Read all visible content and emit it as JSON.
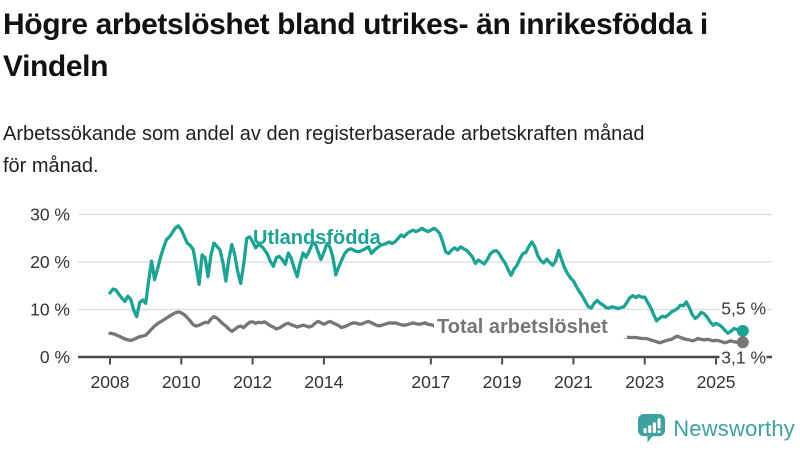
{
  "title_lines": [
    "Högre arbetslöshet bland utrikes- än inrikesfödda i",
    "Vindeln"
  ],
  "subtitle_lines": [
    "Arbetssökande som andel av den registerbaserade arbetskraften månad",
    "för månad."
  ],
  "chart_data": {
    "type": "line",
    "unit": "percent",
    "x_start_year": 2008,
    "points_per_year": 12,
    "ylim": [
      0,
      32
    ],
    "grid": true,
    "legend_position": "inline-labels",
    "y_ticks": [
      {
        "value": 0,
        "label": "0 %"
      },
      {
        "value": 10,
        "label": "10 %"
      },
      {
        "value": 20,
        "label": "20 %"
      },
      {
        "value": 30,
        "label": "30 %"
      }
    ],
    "x_ticks": [
      {
        "year": 2008,
        "label": "2008"
      },
      {
        "year": 2010,
        "label": "2010"
      },
      {
        "year": 2012,
        "label": "2012"
      },
      {
        "year": 2014,
        "label": "2014"
      },
      {
        "year": 2017,
        "label": "2017"
      },
      {
        "year": 2019,
        "label": "2019"
      },
      {
        "year": 2021,
        "label": "2021"
      },
      {
        "year": 2023,
        "label": "2023"
      },
      {
        "year": 2025,
        "label": "2025"
      }
    ],
    "series": [
      {
        "name": "Utlandsfödda",
        "color": "#1da294",
        "end_label": "5,5 %",
        "end_value": 5.5,
        "values": [
          13.5,
          14.3,
          14.1,
          13.2,
          12.4,
          11.7,
          12.8,
          12.1,
          9.8,
          8.5,
          11.5,
          12.0,
          11.3,
          16.0,
          20.2,
          16.3,
          18.5,
          21.0,
          23.0,
          24.7,
          25.3,
          26.2,
          27.2,
          27.6,
          26.8,
          25.4,
          24.0,
          23.5,
          22.6,
          19.1,
          15.3,
          21.5,
          20.9,
          16.9,
          21.5,
          24.0,
          23.3,
          22.6,
          19.9,
          16.0,
          20.5,
          23.7,
          21.5,
          18.0,
          15.5,
          19.5,
          25.0,
          25.3,
          24.3,
          23.0,
          23.7,
          23.3,
          22.6,
          21.6,
          20.1,
          19.1,
          20.9,
          21.2,
          20.5,
          19.5,
          21.9,
          20.8,
          18.7,
          16.9,
          19.7,
          21.9,
          21.0,
          22.2,
          23.7,
          24.0,
          22.2,
          20.5,
          22.0,
          23.9,
          23.2,
          21.1,
          17.3,
          19.0,
          20.4,
          21.8,
          22.5,
          22.8,
          22.5,
          22.2,
          22.2,
          22.5,
          22.8,
          23.2,
          21.8,
          22.5,
          23.0,
          23.5,
          23.7,
          23.9,
          24.2,
          23.9,
          24.3,
          25.0,
          25.7,
          25.3,
          26.0,
          26.4,
          26.7,
          26.4,
          26.7,
          27.1,
          26.7,
          26.4,
          26.7,
          27.1,
          26.7,
          26.0,
          24.2,
          22.1,
          21.8,
          22.5,
          23.0,
          22.5,
          23.2,
          22.8,
          22.5,
          21.8,
          21.1,
          19.7,
          20.4,
          20.0,
          19.6,
          20.5,
          21.7,
          22.2,
          22.4,
          21.8,
          20.7,
          19.8,
          18.4,
          17.2,
          18.5,
          19.3,
          20.7,
          21.8,
          22.0,
          23.3,
          24.2,
          23.2,
          21.3,
          20.3,
          19.8,
          20.6,
          19.9,
          19.3,
          20.2,
          22.4,
          20.5,
          18.8,
          17.6,
          16.6,
          16.0,
          14.8,
          13.8,
          12.8,
          11.7,
          10.6,
          10.3,
          11.3,
          11.9,
          11.3,
          10.9,
          10.4,
          10.3,
          10.6,
          10.4,
          10.2,
          10.4,
          10.6,
          11.5,
          12.5,
          12.9,
          12.5,
          12.9,
          12.6,
          12.6,
          11.5,
          10.4,
          8.9,
          7.6,
          8.2,
          8.6,
          8.4,
          8.9,
          9.5,
          9.8,
          10.2,
          10.9,
          10.8,
          11.6,
          10.4,
          8.9,
          8.1,
          8.6,
          9.4,
          9.1,
          8.4,
          7.4,
          6.7,
          7.1,
          6.8,
          6.3,
          5.6,
          5.0,
          5.4,
          6.0,
          5.8,
          5.4,
          5.5
        ]
      },
      {
        "name": "Total arbetslöshet",
        "color": "#76767a",
        "end_label": "3,1 %",
        "end_value": 3.1,
        "values": [
          5.0,
          4.9,
          4.7,
          4.4,
          4.1,
          3.8,
          3.6,
          3.5,
          3.7,
          4.0,
          4.3,
          4.4,
          4.6,
          5.2,
          5.9,
          6.5,
          7.0,
          7.4,
          7.8,
          8.2,
          8.6,
          9.0,
          9.3,
          9.5,
          9.3,
          8.9,
          8.3,
          7.6,
          6.8,
          6.5,
          6.7,
          7.0,
          7.3,
          7.2,
          8.0,
          8.5,
          8.2,
          7.6,
          7.0,
          6.5,
          5.9,
          5.4,
          5.8,
          6.3,
          6.5,
          6.2,
          6.8,
          7.3,
          7.4,
          7.1,
          7.3,
          7.2,
          7.4,
          7.0,
          6.6,
          6.3,
          5.9,
          6.1,
          6.5,
          6.9,
          7.1,
          6.8,
          6.6,
          6.3,
          6.5,
          6.7,
          6.5,
          6.3,
          6.5,
          7.1,
          7.5,
          7.2,
          6.9,
          7.2,
          7.5,
          7.2,
          6.9,
          6.6,
          6.2,
          6.4,
          6.7,
          7.0,
          7.2,
          7.1,
          6.9,
          7.0,
          7.3,
          7.5,
          7.2,
          6.9,
          6.6,
          6.6,
          6.8,
          7.0,
          7.2,
          7.1,
          7.2,
          7.0,
          6.8,
          6.7,
          6.8,
          7.0,
          7.2,
          7.0,
          6.9,
          7.0,
          7.2,
          6.9,
          6.8,
          6.6,
          6.7,
          6.5,
          6.3,
          6.2,
          6.0,
          6.1,
          6.2,
          6.0,
          5.9,
          5.8,
          5.8,
          5.7,
          5.6,
          5.5,
          5.4,
          5.3,
          5.2,
          5.3,
          5.4,
          5.3,
          5.2,
          5.1,
          5.2,
          5.1,
          5.0,
          4.9,
          4.8,
          4.9,
          5.0,
          5.1,
          5.0,
          4.9,
          4.8,
          4.9,
          5.0,
          5.2,
          5.6,
          6.0,
          6.2,
          6.3,
          6.2,
          6.0,
          5.8,
          5.6,
          5.4,
          5.3,
          5.3,
          5.2,
          5.1,
          5.0,
          4.9,
          4.9,
          4.8,
          4.8,
          4.9,
          4.8,
          4.8,
          4.8,
          4.8,
          4.7,
          4.6,
          4.5,
          4.4,
          4.3,
          4.2,
          4.1,
          4.1,
          4.1,
          4.0,
          3.9,
          3.9,
          3.8,
          3.6,
          3.4,
          3.2,
          3.0,
          3.2,
          3.4,
          3.6,
          3.7,
          4.1,
          4.4,
          4.1,
          3.9,
          3.7,
          3.6,
          3.4,
          3.6,
          3.9,
          3.7,
          3.6,
          3.7,
          3.6,
          3.4,
          3.5,
          3.4,
          3.2,
          3.0,
          3.2,
          3.4,
          3.2,
          3.1,
          3.1,
          3.1
        ]
      }
    ]
  },
  "colors": {
    "grid": "#dcdcdc",
    "axis": "#4a4a4a",
    "axis_text": "#333333",
    "end_label_text": "#3a3a3a",
    "background": "#ffffff"
  },
  "branding": {
    "logo_text": "Newsworthy",
    "logo_color": "#3fa0a2",
    "logo_icon": "speech-bubble-bar-chart-icon"
  }
}
